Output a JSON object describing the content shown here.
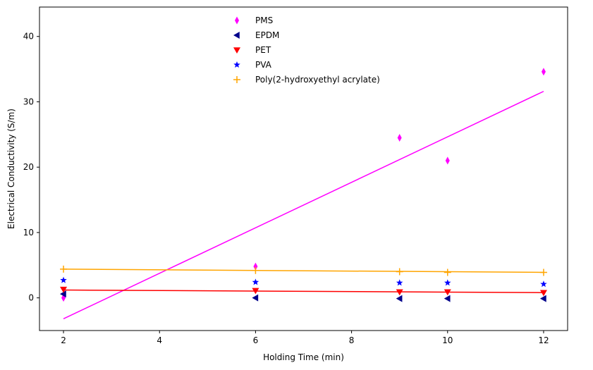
{
  "chart_data": {
    "type": "scatter",
    "xlabel": "Holding Time (min)",
    "ylabel": "Electrical Conductivity (S/m)",
    "xlim": [
      1.5,
      12.5
    ],
    "ylim": [
      -5,
      44.5
    ],
    "xticks": [
      2,
      4,
      6,
      8,
      10,
      12
    ],
    "yticks": [
      0,
      10,
      20,
      30,
      40
    ],
    "grid": false,
    "legend_position": "top-center",
    "x": [
      2,
      6,
      9,
      10,
      12
    ],
    "series": [
      {
        "name": "PMS",
        "color": "#ff00ff",
        "marker": "thin-diamond",
        "values": [
          0,
          4.8,
          24.5,
          21.0,
          34.6
        ],
        "trend": [
          -3.2,
          31.6
        ]
      },
      {
        "name": "EPDM",
        "color": "#00008b",
        "marker": "triangle-left",
        "values": [
          0.6,
          0.0,
          -0.1,
          -0.1,
          -0.1
        ],
        "trend": null
      },
      {
        "name": "PET",
        "color": "#ff0000",
        "marker": "triangle-down",
        "values": [
          1.3,
          1.1,
          0.9,
          0.9,
          0.8
        ],
        "trend": [
          1.2,
          0.8
        ]
      },
      {
        "name": "PVA",
        "color": "#0000ff",
        "marker": "star",
        "values": [
          2.7,
          2.4,
          2.3,
          2.3,
          2.1
        ],
        "trend": null
      },
      {
        "name": "Poly(2-hydroxyethyl acrylate)",
        "color": "#ffa500",
        "marker": "plus",
        "values": [
          4.4,
          4.2,
          4.0,
          3.9,
          3.9
        ],
        "trend": [
          4.4,
          3.9
        ]
      }
    ]
  }
}
